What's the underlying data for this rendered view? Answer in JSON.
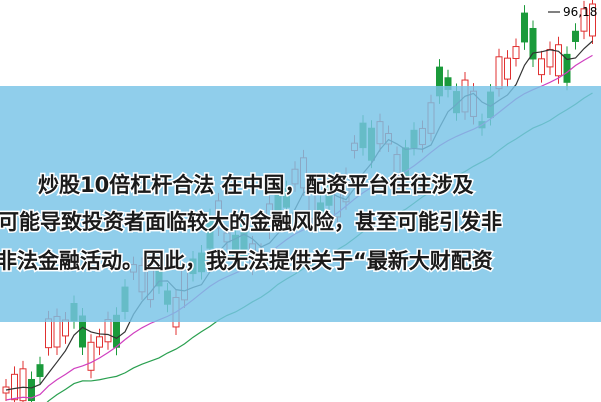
{
  "price_label": "96,18",
  "banner": {
    "lines": [
      "炒股10倍杠杆合法 在中国，配资平台往往涉及",
      "可能导致投资者面临较大的金融风险，甚至可能引发非",
      "非法金融活动。因此，我无法提供关于“最新大财配资"
    ]
  }
}
